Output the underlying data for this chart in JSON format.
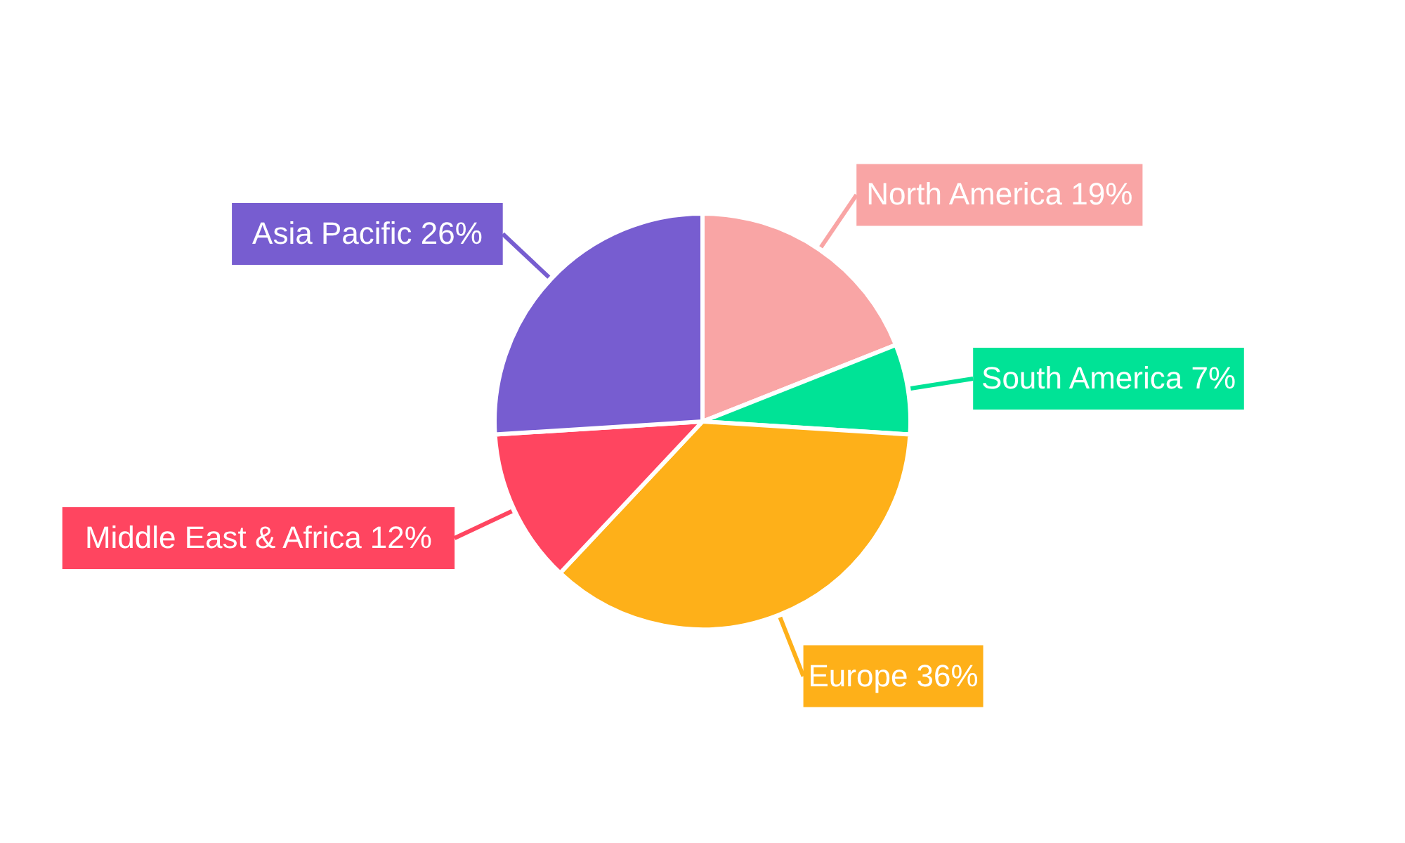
{
  "chart_data": {
    "type": "pie",
    "categories": [
      "North America",
      "South America",
      "Europe",
      "Middle East & Africa",
      "Asia Pacific"
    ],
    "values": [
      19,
      7,
      36,
      12,
      26
    ],
    "value_labels": [
      "19%",
      "7%",
      "36%",
      "12%",
      "26%"
    ],
    "colors": [
      "#f9a5a5",
      "#00e396",
      "#feb019",
      "#ff4560",
      "#775dd0"
    ]
  }
}
